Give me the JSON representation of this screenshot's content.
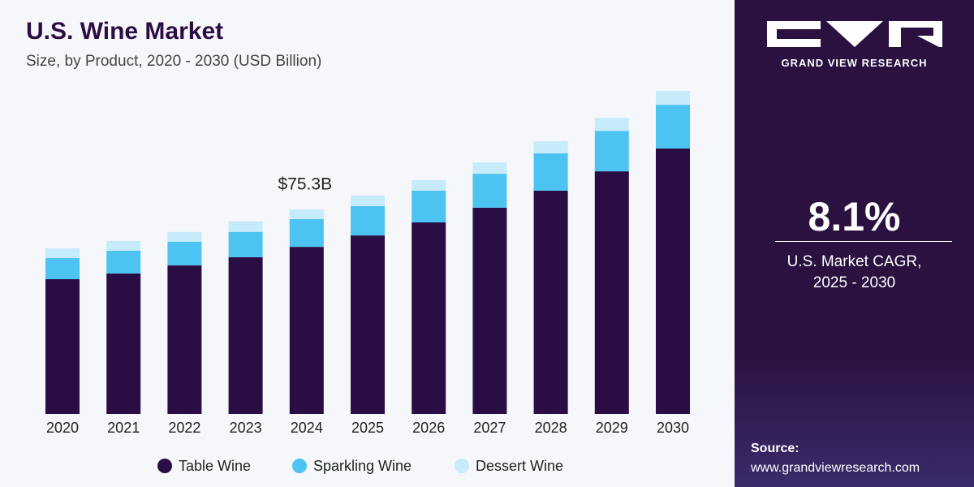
{
  "chart_data": {
    "type": "stacked_bar",
    "title": "U.S. Wine Market",
    "subtitle": "Size, by Product, 2020 - 2030 (USD Billion)",
    "categories": [
      "2020",
      "2021",
      "2022",
      "2023",
      "2024",
      "2025",
      "2026",
      "2027",
      "2028",
      "2029",
      "2030"
    ],
    "series": [
      {
        "name": "Table Wine",
        "color": "#2b0d45",
        "values": [
          49.6,
          51.7,
          54.7,
          57.7,
          61.5,
          65.7,
          70.5,
          75.9,
          82.2,
          89.3,
          97.7
        ]
      },
      {
        "name": "Sparkling Wine",
        "color": "#4cc3f0",
        "values": [
          7.8,
          8.4,
          8.7,
          9.3,
          10.2,
          10.8,
          11.7,
          12.5,
          13.7,
          14.9,
          16.1
        ]
      },
      {
        "name": "Dessert Wine",
        "color": "#c6ebfa",
        "values": [
          3.6,
          3.6,
          3.6,
          3.9,
          3.6,
          3.9,
          3.9,
          4.2,
          4.5,
          4.8,
          5.1
        ]
      }
    ],
    "annotation": {
      "text": "$75.3B",
      "x": "2024"
    }
  },
  "sidebar": {
    "brand": "GRAND VIEW RESEARCH",
    "cagr": "8.1%",
    "cagr_label": "U.S. Market CAGR,",
    "cagr_period": "2025 - 2030",
    "source_label": "Source:",
    "source_url": "www.grandviewresearch.com"
  }
}
